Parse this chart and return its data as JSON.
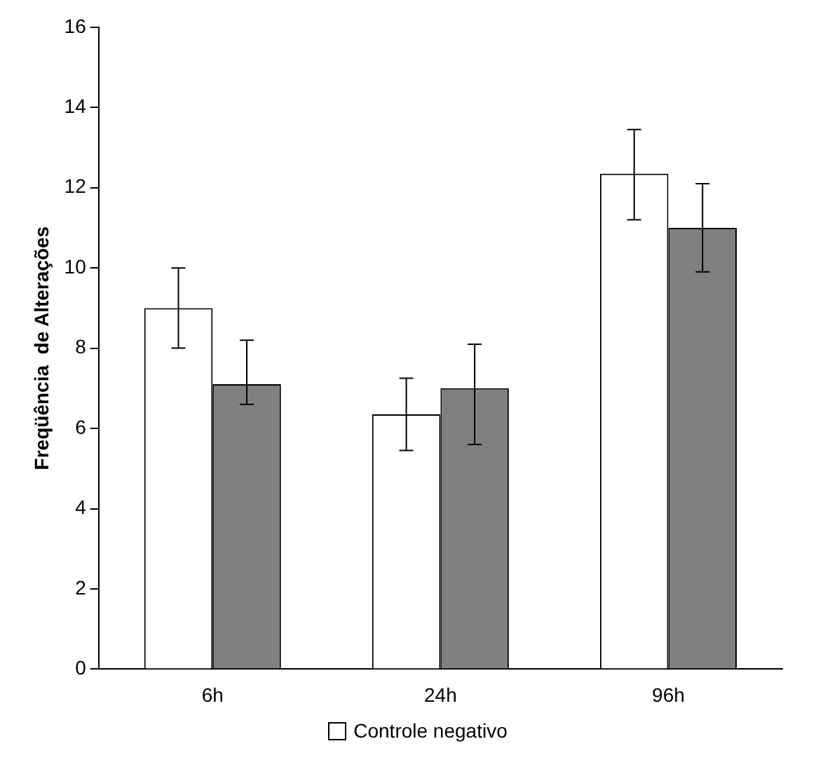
{
  "chart_data": {
    "type": "bar",
    "ylabel": "Freqüência  de Alterações",
    "categories": [
      "6h",
      "24h",
      "96h"
    ],
    "series": [
      {
        "name": "Controle negativo",
        "color": "#ffffff",
        "values": [
          9.0,
          6.35,
          12.35
        ],
        "errors": [
          [
            8.0,
            10.0
          ],
          [
            5.45,
            7.25
          ],
          [
            11.2,
            13.45
          ]
        ]
      },
      {
        "color": "#808080",
        "values": [
          7.1,
          7.0,
          11.0
        ],
        "errors": [
          [
            6.6,
            8.2
          ],
          [
            5.6,
            8.1
          ],
          [
            9.9,
            12.1
          ]
        ]
      }
    ],
    "ylim": [
      0,
      16
    ],
    "yticks": [
      0,
      2,
      4,
      6,
      8,
      10,
      12,
      14,
      16
    ],
    "grid": false,
    "legend": "bottom"
  }
}
